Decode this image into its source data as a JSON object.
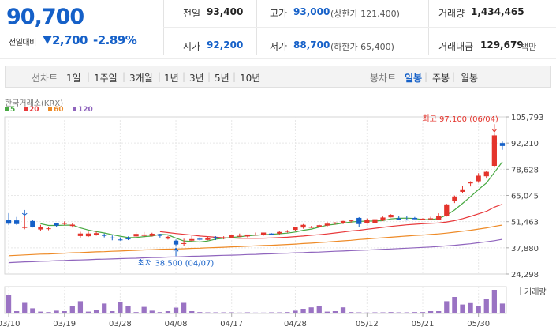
{
  "header": {
    "price": "90,700",
    "change_label": "전일대비",
    "change_direction_icon": "down-triangle-icon",
    "change_value": "2,700",
    "change_pct": "-2.89%"
  },
  "quote": {
    "prev_close_label": "전일",
    "prev_close": "93,400",
    "open_label": "시가",
    "open": "92,200",
    "high_label": "고가",
    "high": "93,000",
    "upper_limit": "(상한가 121,400)",
    "low_label": "저가",
    "low": "88,700",
    "lower_limit": "(하한가 65,400)",
    "volume_label": "거래량",
    "volume": "1,434,465",
    "amount_label": "거래대금",
    "amount": "129,679",
    "amount_unit": "백만"
  },
  "toolbar": {
    "line_label": "선차트",
    "ranges": [
      "1일",
      "1주일",
      "3개월",
      "1년",
      "3년",
      "5년",
      "10년"
    ],
    "candle_label": "봉차트",
    "periods": [
      "일봉",
      "주봉",
      "월봉"
    ],
    "selected_period": "일봉"
  },
  "colors": {
    "up": "#e4342c",
    "down": "#1560c8",
    "ma5": "#48a942",
    "ma20": "#e8383a",
    "ma60": "#ee8a26",
    "ma120": "#8f64bd",
    "volume": "#9a73c3"
  },
  "chart_data": {
    "type": "candlestick",
    "market_label": "한국거래소(KRX)",
    "legend": [
      {
        "name": "5",
        "color": "#48a942"
      },
      {
        "name": "20",
        "color": "#e8383a"
      },
      {
        "name": "60",
        "color": "#ee8a26"
      },
      {
        "name": "120",
        "color": "#8f64bd"
      }
    ],
    "y_ticks": [
      "105,793",
      "92,210",
      "78,628",
      "65,045",
      "51,463",
      "37,880",
      "24,298"
    ],
    "y_tick_values": [
      105793,
      92210,
      78628,
      65045,
      51463,
      37880,
      24298
    ],
    "ylim": [
      24298,
      105793
    ],
    "x_labels": [
      "03/10",
      "03/19",
      "03/28",
      "04/08",
      "04/17",
      "04/28",
      "05/12",
      "05/21",
      "05/30"
    ],
    "x_label_index": [
      0,
      7,
      14,
      21,
      28,
      36,
      45,
      52,
      59
    ],
    "high_annotation": "최고 97,100 (06/04)",
    "low_annotation": "최저 38,500 (04/07)",
    "volume_label": "거래량",
    "ohlc": [
      [
        52500,
        55800,
        49800,
        50400
      ],
      [
        52100,
        53900,
        49700,
        50200
      ],
      [
        48200,
        54400,
        47500,
        48700
      ],
      [
        51800,
        52400,
        48400,
        48800
      ],
      [
        47400,
        49800,
        46600,
        48800
      ],
      [
        47600,
        48800,
        47000,
        48000
      ],
      [
        50500,
        50800,
        48700,
        49400
      ],
      [
        50300,
        51600,
        49600,
        50800
      ],
      [
        49200,
        50900,
        48400,
        49900
      ],
      [
        44000,
        46200,
        43200,
        45300
      ],
      [
        43900,
        46300,
        43500,
        45300
      ],
      [
        44700,
        46300,
        44200,
        45500
      ],
      [
        44500,
        45300,
        43300,
        44400
      ],
      [
        43200,
        44300,
        41800,
        42900
      ],
      [
        42200,
        43300,
        41600,
        42000
      ],
      [
        42700,
        43800,
        41900,
        42300
      ],
      [
        43800,
        46100,
        43500,
        45100
      ],
      [
        44100,
        46100,
        43200,
        44800
      ],
      [
        44100,
        45700,
        43700,
        45200
      ],
      [
        45000,
        45100,
        43200,
        44100
      ],
      [
        42600,
        44100,
        42200,
        43600
      ],
      [
        41600,
        42200,
        38500,
        39600
      ],
      [
        40100,
        42600,
        38700,
        40300
      ],
      [
        41600,
        44100,
        41100,
        42400
      ],
      [
        42600,
        43400,
        41600,
        42100
      ],
      [
        42000,
        43500,
        41800,
        42900
      ],
      [
        43400,
        43900,
        41900,
        42800
      ],
      [
        42800,
        43900,
        42300,
        43300
      ],
      [
        43200,
        44700,
        42800,
        44600
      ],
      [
        43700,
        45300,
        43500,
        44100
      ],
      [
        43800,
        44700,
        43300,
        44800
      ],
      [
        44500,
        45800,
        44200,
        44700
      ],
      [
        44600,
        45600,
        44200,
        45800
      ],
      [
        45300,
        45500,
        44900,
        44500
      ],
      [
        45300,
        46800,
        44700,
        46100
      ],
      [
        46300,
        47100,
        45800,
        46600
      ],
      [
        47200,
        48800,
        46500,
        48600
      ],
      [
        48400,
        50200,
        47800,
        49800
      ],
      [
        48500,
        49200,
        48100,
        48700
      ],
      [
        48600,
        49900,
        48600,
        49600
      ],
      [
        49400,
        51400,
        48800,
        50400
      ],
      [
        50500,
        51200,
        49900,
        51000
      ],
      [
        50600,
        51900,
        50200,
        51800
      ],
      [
        51700,
        52300,
        51000,
        52100
      ],
      [
        53400,
        53800,
        48800,
        50200
      ],
      [
        50600,
        53100,
        50400,
        52400
      ],
      [
        50900,
        52800,
        50700,
        52700
      ],
      [
        52100,
        54100,
        51700,
        53600
      ],
      [
        53700,
        55300,
        53600,
        55000
      ],
      [
        53200,
        54600,
        52600,
        52400
      ],
      [
        52600,
        54300,
        52300,
        52100
      ],
      [
        53400,
        53900,
        52700,
        52700
      ],
      [
        52500,
        53200,
        52200,
        53000
      ],
      [
        52700,
        54000,
        52300,
        53200
      ],
      [
        52400,
        55800,
        52200,
        54300
      ],
      [
        54300,
        60700,
        54100,
        60400
      ],
      [
        62000,
        65000,
        61100,
        64500
      ],
      [
        66900,
        69900,
        66100,
        68200
      ],
      [
        71300,
        72400,
        69700,
        72100
      ],
      [
        72400,
        76600,
        71600,
        75300
      ],
      [
        75000,
        77800,
        73800,
        77300
      ],
      [
        80400,
        97100,
        79500,
        96200
      ],
      [
        92200,
        93000,
        88700,
        90700
      ]
    ],
    "ma5": [
      null,
      null,
      null,
      null,
      50400,
      49500,
      49500,
      49600,
      49700,
      48200,
      47100,
      46300,
      45600,
      44700,
      43900,
      43200,
      43200,
      43700,
      44000,
      44900,
      44600,
      42900,
      41400,
      41200,
      40900,
      41400,
      42400,
      42800,
      43300,
      43600,
      44100,
      44400,
      44700,
      44900,
      45200,
      45500,
      46100,
      47000,
      47600,
      48600,
      49600,
      50100,
      50700,
      51300,
      51600,
      51700,
      51800,
      52000,
      52900,
      53200,
      53300,
      53100,
      52500,
      52500,
      53100,
      54900,
      57500,
      60900,
      64400,
      68100,
      71500,
      77000,
      82500
    ],
    "ma20": [
      null,
      null,
      null,
      null,
      null,
      null,
      null,
      null,
      null,
      null,
      null,
      null,
      null,
      null,
      null,
      null,
      null,
      null,
      null,
      46300,
      45800,
      45300,
      44900,
      44500,
      44000,
      43700,
      43400,
      43100,
      43000,
      42800,
      42800,
      42800,
      42900,
      43000,
      43200,
      43400,
      43700,
      44000,
      44400,
      44700,
      45100,
      45600,
      46100,
      46600,
      47000,
      47500,
      48000,
      48500,
      49000,
      49400,
      49800,
      50100,
      50400,
      50600,
      50800,
      51300,
      52000,
      53000,
      54200,
      55500,
      56800,
      59000,
      60500
    ],
    "ma60": [
      33800,
      34000,
      34200,
      34400,
      34600,
      34700,
      34900,
      35100,
      35300,
      35400,
      35600,
      35800,
      35900,
      36100,
      36200,
      36400,
      36600,
      36800,
      36900,
      37100,
      37200,
      37300,
      37400,
      37600,
      37700,
      37900,
      38000,
      38200,
      38400,
      38500,
      38700,
      38900,
      39100,
      39200,
      39400,
      39600,
      39800,
      40100,
      40300,
      40600,
      40900,
      41200,
      41500,
      41800,
      42200,
      42500,
      42800,
      43100,
      43400,
      43700,
      44000,
      44300,
      44500,
      44800,
      45100,
      45500,
      46000,
      46500,
      47000,
      47600,
      48200,
      49000,
      49700
    ],
    "ma120": [
      30200,
      30400,
      30600,
      30700,
      30900,
      31000,
      31200,
      31300,
      31500,
      31600,
      31700,
      31900,
      32000,
      32100,
      32300,
      32400,
      32500,
      32700,
      32800,
      32900,
      33100,
      33200,
      33300,
      33500,
      33600,
      33700,
      33900,
      34000,
      34100,
      34200,
      34400,
      34500,
      34700,
      34800,
      35000,
      35100,
      35300,
      35400,
      35600,
      35700,
      35900,
      36100,
      36200,
      36400,
      36600,
      36700,
      36900,
      37100,
      37300,
      37500,
      37700,
      37900,
      38100,
      38300,
      38600,
      38900,
      39200,
      39600,
      40000,
      40500,
      41000,
      41600,
      42300
    ],
    "volume": [
      0.78,
      0.1,
      0.45,
      0.22,
      0.08,
      0.06,
      0.12,
      0.1,
      0.3,
      0.52,
      0.08,
      0.14,
      0.42,
      0.1,
      0.48,
      0.3,
      0.06,
      0.28,
      0.12,
      0.06,
      0.1,
      0.25,
      0.45,
      0.1,
      0.06,
      0.05,
      0.05,
      0.05,
      0.05,
      0.04,
      0.05,
      0.04,
      0.04,
      0.05,
      0.05,
      0.06,
      0.12,
      0.2,
      0.26,
      0.3,
      0.08,
      0.1,
      0.26,
      0.06,
      0.05,
      0.04,
      0.05,
      0.05,
      0.06,
      0.05,
      0.05,
      0.06,
      0.06,
      0.1,
      0.1,
      0.52,
      0.7,
      0.38,
      0.44,
      0.32,
      0.6,
      1.0,
      0.42
    ]
  }
}
